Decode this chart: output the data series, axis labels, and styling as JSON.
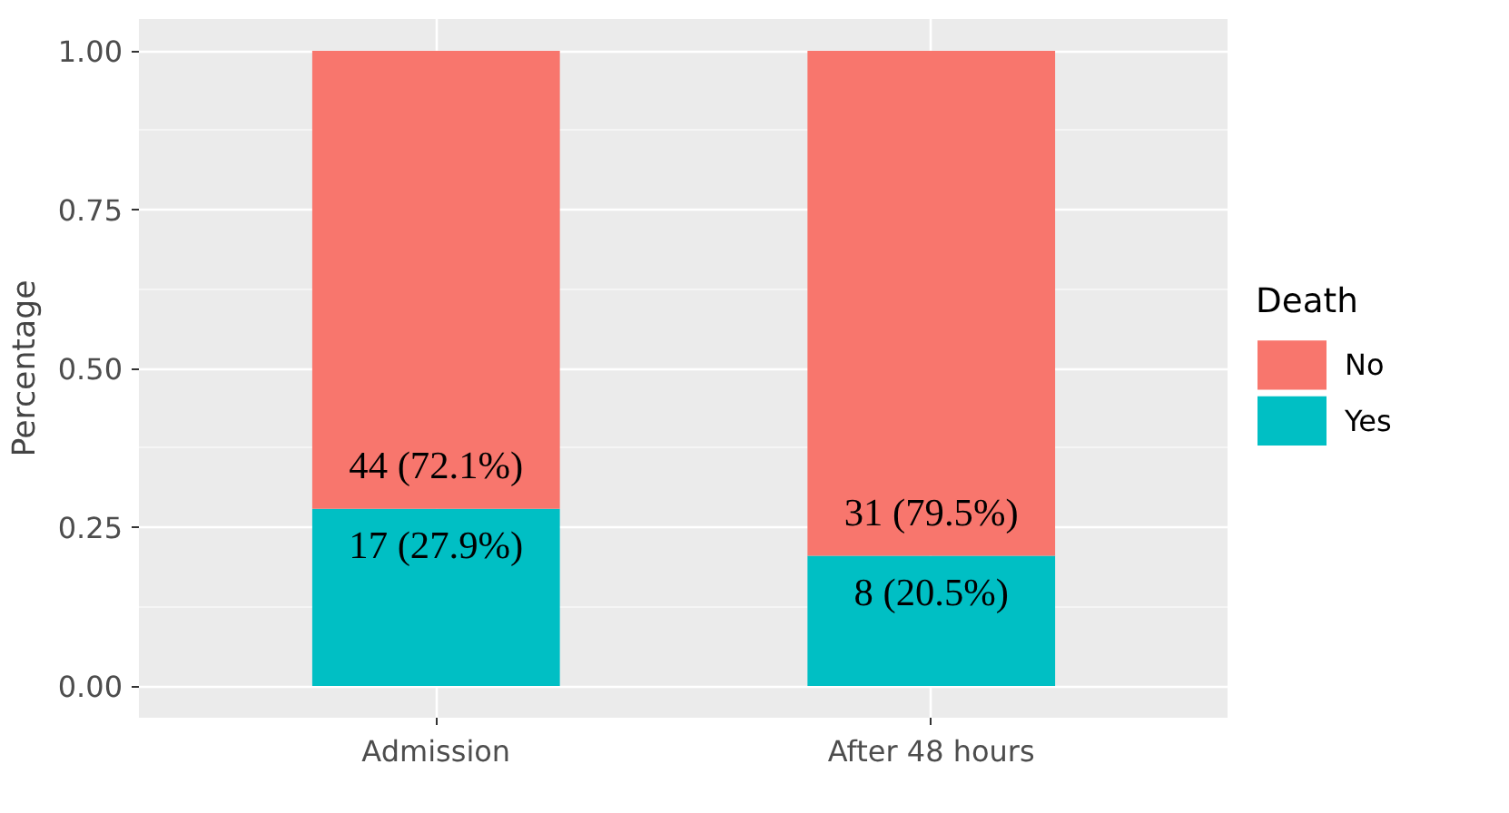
{
  "chart_data": {
    "type": "bar",
    "stacked": true,
    "ylabel": "Percentage",
    "legend_title": "Death",
    "legend": "right",
    "grid": true,
    "categories": [
      "Admission",
      "After 48 hours"
    ],
    "ylim": [
      -0.05,
      1.05
    ],
    "yticks": [
      {
        "value": 0,
        "label": "0.00"
      },
      {
        "value": 0.25,
        "label": "0.25"
      },
      {
        "value": 0.5,
        "label": "0.50"
      },
      {
        "value": 0.75,
        "label": "0.75"
      },
      {
        "value": 1,
        "label": "1.00"
      }
    ],
    "series": [
      {
        "name": "Yes",
        "color": "#00bfc4",
        "values": [
          0.279,
          0.205
        ],
        "value_labels": [
          "17 (27.9%)",
          "8 (20.5%)"
        ]
      },
      {
        "name": "No",
        "color": "#f8766d",
        "values": [
          0.721,
          0.795
        ],
        "value_labels": [
          "44 (72.1%)",
          "31 (79.5%)"
        ]
      }
    ]
  }
}
